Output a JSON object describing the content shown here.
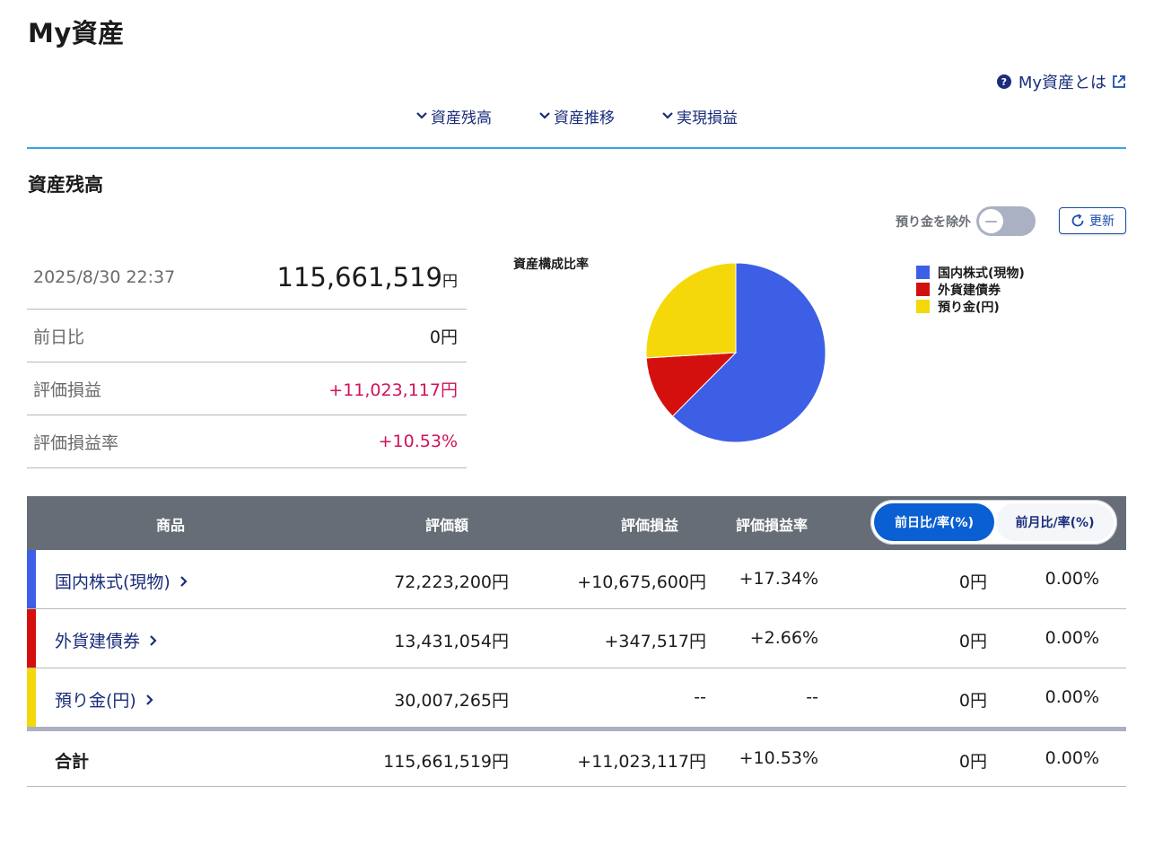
{
  "page": {
    "title": "My資産"
  },
  "help": {
    "label": "My資産とは"
  },
  "nav": {
    "items": [
      "資産残高",
      "資産推移",
      "実現損益"
    ]
  },
  "balance": {
    "section_title": "資産残高",
    "toggle_label": "預り金を除外",
    "toggle_on": false,
    "refresh_label": "更新",
    "datetime": "2025/8/30 22:37",
    "total_amount": "115,661,519",
    "currency": "円",
    "rows": [
      {
        "label": "前日比",
        "value": "0円"
      },
      {
        "label": "評価損益",
        "value": "+11,023,117円"
      },
      {
        "label": "評価損益率",
        "value": "+10.53%"
      }
    ]
  },
  "chart_data": {
    "type": "pie",
    "title": "資産構成比率",
    "categories": [
      "国内株式(現物)",
      "外貨建債券",
      "預り金(円)"
    ],
    "values": [
      72223200,
      13431054,
      30007265
    ],
    "colors": [
      "#3d5fe6",
      "#d4100f",
      "#f4d80a"
    ],
    "legend_position": "right"
  },
  "table": {
    "headers": {
      "product": "商品",
      "valuation": "評価額",
      "pl": "評価損益",
      "pl_rate": "評価損益率"
    },
    "compare_options": [
      "前日比/率(%)",
      "前月比/率(%)"
    ],
    "compare_selected": 0,
    "rows": [
      {
        "name": "国内株式(現物)",
        "color": "#3d5fe6",
        "valuation": "72,223,200円",
        "pl": "+10,675,600円",
        "pl_rate": "+17.34%",
        "change": "0円",
        "change_rate": "0.00%"
      },
      {
        "name": "外貨建債券",
        "color": "#d4100f",
        "valuation": "13,431,054円",
        "pl": "+347,517円",
        "pl_rate": "+2.66%",
        "change": "0円",
        "change_rate": "0.00%"
      },
      {
        "name": "預り金(円)",
        "color": "#f4d80a",
        "valuation": "30,007,265円",
        "pl": "--",
        "pl_rate": "--",
        "change": "0円",
        "change_rate": "0.00%"
      }
    ],
    "total": {
      "label": "合計",
      "valuation": "115,661,519円",
      "pl": "+11,023,117円",
      "pl_rate": "+10.53%",
      "change": "0円",
      "change_rate": "0.00%"
    }
  }
}
